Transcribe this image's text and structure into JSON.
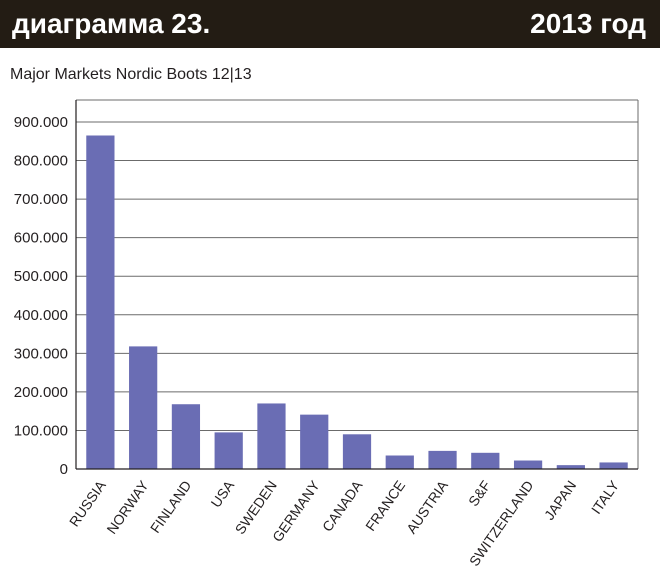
{
  "header": {
    "title": "диаграмма 23.",
    "year": "2013 год",
    "background": "#231c14"
  },
  "chart_data": {
    "type": "bar",
    "title": "Major Markets Nordic Boots 12|13",
    "xlabel": "",
    "ylabel": "",
    "categories": [
      "RUSSIA",
      "NORWAY",
      "FINLAND",
      "USA",
      "SWEDEN",
      "GERMANY",
      "CANADA",
      "FRANCE",
      "AUSTRIA",
      "S&F",
      "SWITZERLAND",
      "JAPAN",
      "ITALY"
    ],
    "values": [
      865000,
      318000,
      168000,
      95000,
      170000,
      141000,
      90000,
      35000,
      47000,
      42000,
      22000,
      10000,
      17000
    ],
    "ylim": [
      0,
      900000
    ],
    "yticks": [
      0,
      100000,
      200000,
      300000,
      400000,
      500000,
      600000,
      700000,
      800000,
      900000
    ],
    "ytick_labels": [
      "0",
      "100.000",
      "200.000",
      "300.000",
      "400.000",
      "500.000",
      "600.000",
      "700.000",
      "800.000",
      "900.000"
    ],
    "grid": true,
    "bar_color": "#6a6db4"
  }
}
